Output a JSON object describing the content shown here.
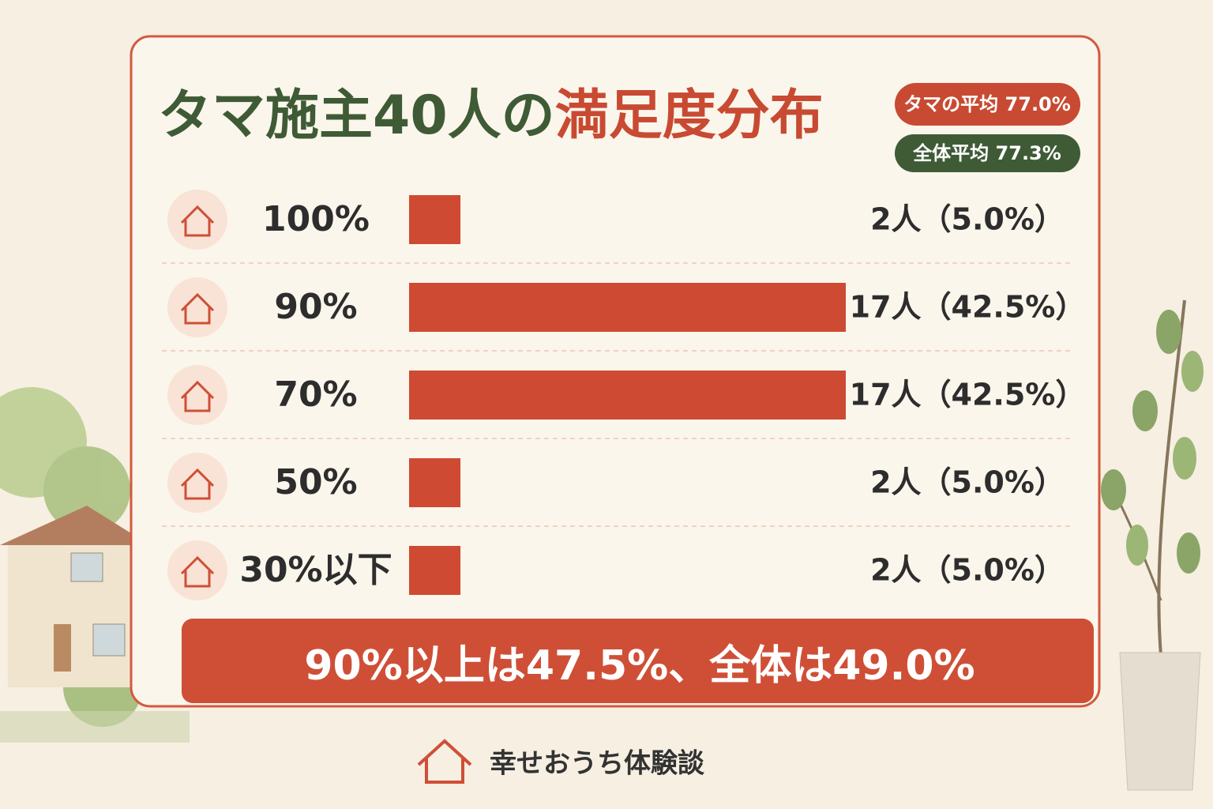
{
  "chart_data": {
    "type": "bar",
    "orientation": "horizontal",
    "title": "タマ施主40人の",
    "title_highlight": "満足度分布",
    "badges": [
      "タマの平均 77.0%",
      "全体平均 77.3%"
    ],
    "categories": [
      "100%",
      "90%",
      "70%",
      "50%",
      "30%以下"
    ],
    "values": [
      2,
      17,
      17,
      2,
      2
    ],
    "value_labels": [
      "2人（5.0%）",
      "17人（42.5%）",
      "17人（42.5%）",
      "2人（5.0%）",
      "2人（5.0%）"
    ],
    "color": "#cf4a32",
    "summary": "90%以上は47.5%、全体は49.0%",
    "brand": "幸せおうち体験談"
  }
}
